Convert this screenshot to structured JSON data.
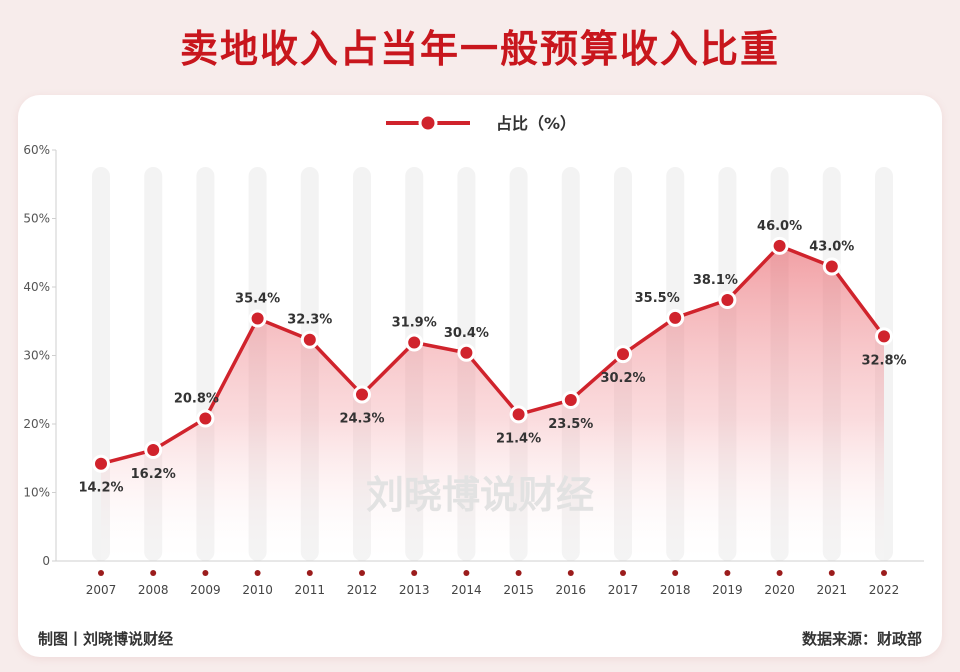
{
  "title": "卖地收入占当年一般预算收入比重",
  "footer": {
    "made_by": "制图丨刘晓博说财经",
    "source": "数据来源：财政部"
  },
  "watermark": "刘晓博说财经",
  "colors": {
    "line": "#d0232c",
    "title": "#c8161d",
    "band": "#f3f3f3",
    "tick_dot": "#9b1c1c"
  },
  "chart_data": {
    "type": "area",
    "categories": [
      "2007",
      "2008",
      "2009",
      "2010",
      "2011",
      "2012",
      "2013",
      "2014",
      "2015",
      "2016",
      "2017",
      "2018",
      "2019",
      "2020",
      "2021",
      "2022"
    ],
    "series": [
      {
        "name": "占比（%）",
        "values": [
          14.2,
          16.2,
          20.8,
          35.4,
          32.3,
          24.3,
          31.9,
          30.4,
          21.4,
          23.5,
          30.2,
          35.5,
          38.1,
          46.0,
          43.0,
          32.8
        ],
        "labels": [
          "14.2%",
          "16.2%",
          "20.8%",
          "35.4%",
          "32.3%",
          "24.3%",
          "31.9%",
          "30.4%",
          "21.4%",
          "23.5%",
          "30.2%",
          "35.5%",
          "38.1%",
          "46.0%",
          "43.0%",
          "32.8%"
        ]
      }
    ],
    "y_ticks": [
      "0",
      "10%",
      "20%",
      "30%",
      "40%",
      "50%",
      "60%"
    ],
    "ylim": [
      0,
      60
    ],
    "legend_position": "top-center",
    "grid": false
  }
}
